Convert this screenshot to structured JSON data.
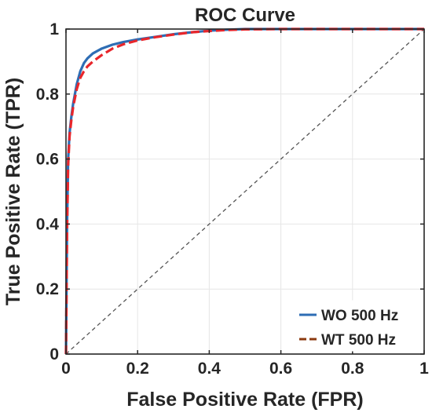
{
  "chart_data": {
    "type": "line",
    "title": "ROC Curve",
    "xlabel": "False Positive Rate (FPR)",
    "ylabel": "True Positive Rate (TPR)",
    "xlim": [
      0,
      1
    ],
    "ylim": [
      0,
      1
    ],
    "xticks": [
      0,
      0.2,
      0.4,
      0.6,
      0.8,
      1
    ],
    "xtick_labels": [
      "0",
      "0.2",
      "0.4",
      "0.6",
      "0.8",
      "1"
    ],
    "yticks": [
      0,
      0.2,
      0.4,
      0.6,
      0.8,
      1
    ],
    "ytick_labels": [
      "0",
      "0.2",
      "0.4",
      "0.6",
      "0.8",
      "1"
    ],
    "grid": true,
    "legend_position": "bottom-right",
    "series": [
      {
        "name": "WO 500 Hz",
        "color": "#2e6db4",
        "style": "solid",
        "x": [
          0,
          0.003,
          0.006,
          0.01,
          0.015,
          0.02,
          0.03,
          0.04,
          0.05,
          0.06,
          0.075,
          0.1,
          0.13,
          0.16,
          0.2,
          0.25,
          0.3,
          0.35,
          0.4,
          0.45,
          0.5,
          0.6,
          0.7,
          0.8,
          0.9,
          1.0
        ],
        "y": [
          0,
          0.4,
          0.6,
          0.68,
          0.73,
          0.77,
          0.83,
          0.87,
          0.895,
          0.91,
          0.925,
          0.94,
          0.952,
          0.96,
          0.968,
          0.976,
          0.984,
          0.99,
          0.995,
          0.998,
          1.0,
          1.0,
          1.0,
          1.0,
          1.0,
          1.0
        ]
      },
      {
        "name": "WT 500 Hz",
        "color": "#e8262b",
        "legend_color": "#8b3a0f",
        "style": "dashed",
        "x": [
          0,
          0.003,
          0.006,
          0.01,
          0.015,
          0.02,
          0.03,
          0.04,
          0.05,
          0.06,
          0.075,
          0.1,
          0.13,
          0.16,
          0.2,
          0.25,
          0.3,
          0.35,
          0.4,
          0.45,
          0.5,
          0.6,
          0.7,
          0.8,
          0.9,
          1.0
        ],
        "y": [
          0,
          0.38,
          0.58,
          0.67,
          0.72,
          0.76,
          0.815,
          0.85,
          0.87,
          0.885,
          0.9,
          0.92,
          0.94,
          0.953,
          0.965,
          0.975,
          0.983,
          0.99,
          0.994,
          0.997,
          0.999,
          1.0,
          1.0,
          1.0,
          1.0,
          1.0
        ]
      }
    ],
    "reference_line": {
      "x": [
        0,
        1
      ],
      "y": [
        0,
        1
      ],
      "color": "#555555",
      "style": "dashed"
    }
  }
}
